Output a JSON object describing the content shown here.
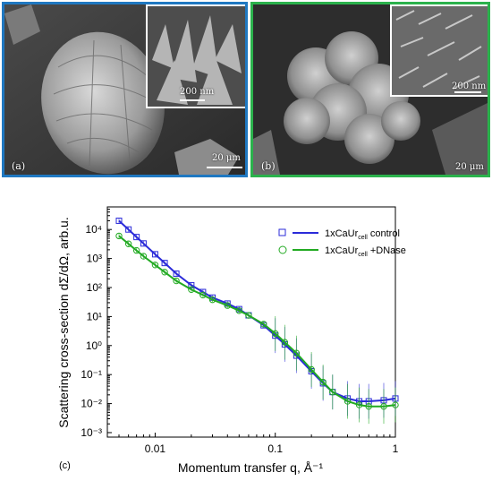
{
  "panels": {
    "a": {
      "label": "(a)",
      "scale_main": "20 μm",
      "scale_inset": "200 nm",
      "border_color": "#1f78c1"
    },
    "b": {
      "label": "(b)",
      "scale_main": "20 μm",
      "scale_inset": "200 nm",
      "border_color": "#2bb24c"
    }
  },
  "chart_label": "(c)",
  "chart_data": {
    "type": "scatter",
    "xlabel": "Momentum transfer q, Å⁻¹",
    "ylabel": "Scattering cross-section dΣ/dΩ, arb.u.",
    "xscale": "log",
    "yscale": "log",
    "xlim": [
      0.004,
      1.0
    ],
    "ylim": [
      0.0007,
      60000
    ],
    "xticks": [
      0.01,
      0.1,
      1
    ],
    "xtick_labels": [
      "0.01",
      "0.1",
      "1"
    ],
    "yticks": [
      0.001,
      0.01,
      0.1,
      1,
      10,
      100,
      1000,
      10000
    ],
    "ytick_labels": [
      "10⁻³",
      "10⁻²",
      "10⁻¹",
      "10⁰",
      "10¹",
      "10²",
      "10³",
      "10⁴"
    ],
    "legend_position": "top-right",
    "series": [
      {
        "name": "1xCaUr_cell control",
        "legend_main": "1xCaUr",
        "legend_sub": "cell",
        "legend_rest": " control",
        "marker": "square",
        "color": "#2b2bd9",
        "x": [
          0.005,
          0.006,
          0.007,
          0.008,
          0.01,
          0.012,
          0.015,
          0.02,
          0.025,
          0.03,
          0.04,
          0.05,
          0.06,
          0.08,
          0.1,
          0.12,
          0.15,
          0.2,
          0.25,
          0.3,
          0.4,
          0.5,
          0.6,
          0.8,
          1.0
        ],
        "y": [
          20000,
          10000,
          5500,
          3300,
          1400,
          700,
          300,
          120,
          70,
          45,
          28,
          18,
          11,
          5,
          2.2,
          1.1,
          0.45,
          0.13,
          0.05,
          0.025,
          0.015,
          0.012,
          0.012,
          0.013,
          0.015
        ]
      },
      {
        "name": "1xCaUr_cell +DNase",
        "legend_main": "1xCaUr",
        "legend_sub": "cell",
        "legend_rest": " +DNase",
        "marker": "circle",
        "color": "#22aa22",
        "x": [
          0.005,
          0.006,
          0.007,
          0.008,
          0.01,
          0.012,
          0.015,
          0.02,
          0.025,
          0.03,
          0.04,
          0.05,
          0.06,
          0.08,
          0.1,
          0.12,
          0.15,
          0.2,
          0.25,
          0.3,
          0.4,
          0.5,
          0.6,
          0.8,
          1.0
        ],
        "y": [
          6000,
          3200,
          1900,
          1200,
          600,
          340,
          170,
          85,
          55,
          38,
          24,
          16,
          11,
          5.5,
          2.6,
          1.3,
          0.55,
          0.15,
          0.055,
          0.025,
          0.012,
          0.009,
          0.008,
          0.008,
          0.009
        ]
      }
    ]
  }
}
